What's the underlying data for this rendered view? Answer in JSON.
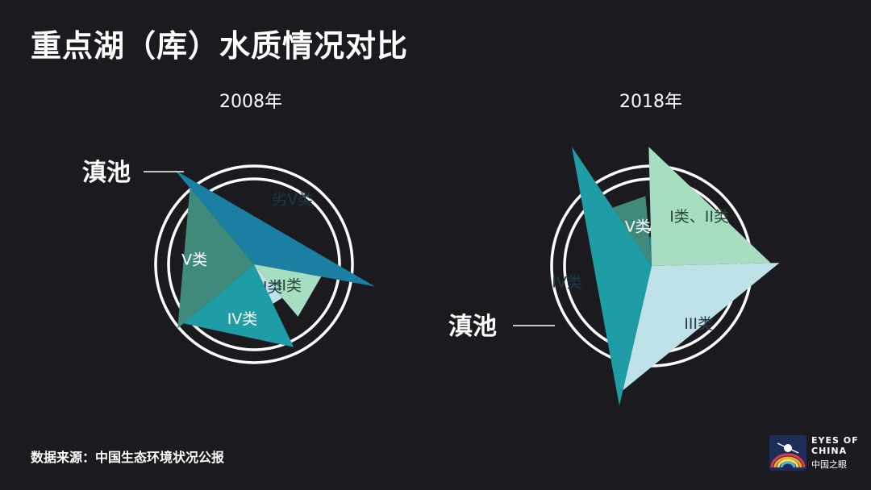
{
  "page": {
    "title": "重点湖（库）水质情况对比",
    "source": "数据来源：中国生态环境状况公报"
  },
  "logo": {
    "line1": "EYES OF",
    "line2": "CHINA",
    "cn": "中国之眼"
  },
  "chart_data": [
    {
      "type": "pie",
      "title": "2008年",
      "annotation": "滇池",
      "annotated_category": "劣V类",
      "categories": [
        "劣V类",
        "II类",
        "III类",
        "IV类",
        "V类"
      ],
      "values": [
        39,
        11,
        4,
        21,
        25
      ],
      "colors": [
        "#1b7fa3",
        "#a7dec2",
        "#bfe1e8",
        "#1f9da7",
        "#3f8a7a"
      ]
    },
    {
      "type": "pie",
      "title": "2018年",
      "annotation": "滇池",
      "annotated_category": "IV类",
      "categories": [
        "劣V类",
        "I类、II类",
        "III类",
        "IV类",
        "V类"
      ],
      "values": [
        1,
        25,
        29,
        37,
        8
      ],
      "colors": [
        "#1b7fa3",
        "#a7dec2",
        "#bfe1e8",
        "#1f9da7",
        "#3f8a7a"
      ]
    }
  ]
}
